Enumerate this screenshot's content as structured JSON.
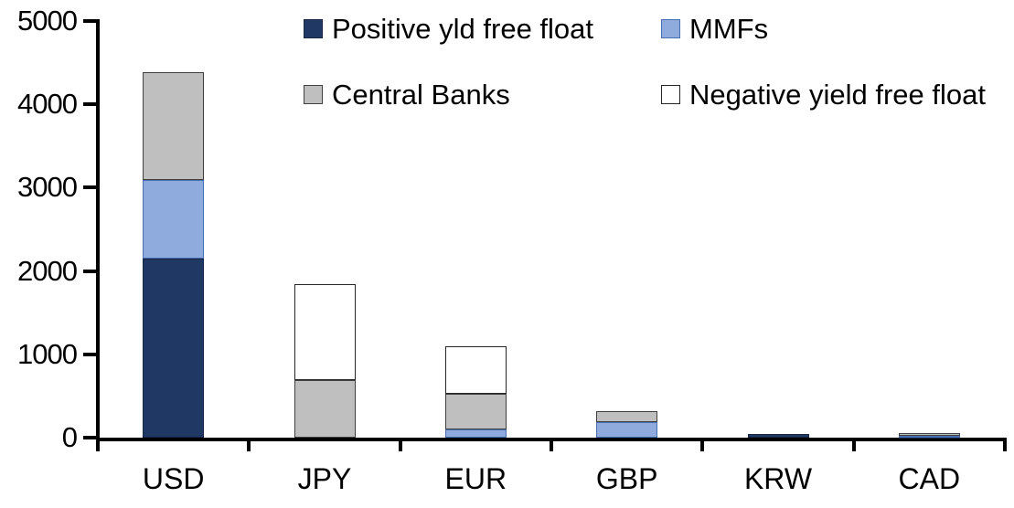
{
  "chart_data": {
    "type": "bar",
    "stacked": true,
    "title": "",
    "xlabel": "",
    "ylabel": "",
    "categories": [
      "USD",
      "JPY",
      "EUR",
      "GBP",
      "KRW",
      "CAD"
    ],
    "series": [
      {
        "name": "Positive yld free float",
        "color": "#1F3864",
        "border_color": "#152743",
        "values": [
          2150,
          0,
          0,
          0,
          40,
          10
        ]
      },
      {
        "name": "MMFs",
        "color": "#8FAADC",
        "border_color": "#4A6FB0",
        "values": [
          940,
          0,
          100,
          190,
          0,
          15
        ]
      },
      {
        "name": "Central Banks",
        "color": "#BFBFBF",
        "border_color": "#404040",
        "values": [
          1300,
          690,
          425,
          125,
          0,
          30
        ]
      },
      {
        "name": "Negative yield free float",
        "color": "#FFFFFF",
        "border_color": "#262626",
        "values": [
          0,
          1150,
          575,
          0,
          0,
          0
        ]
      }
    ],
    "totals_by_category": [
      4390,
      1840,
      1100,
      315,
      40,
      55
    ],
    "ylim": [
      0,
      5000
    ],
    "ytick_labels": [
      "0",
      "1000",
      "2000",
      "3000",
      "4000",
      "5000"
    ],
    "ytick_values": [
      0,
      1000,
      2000,
      3000,
      4000,
      5000
    ],
    "grid": false,
    "legend_position": "top",
    "legend_layout": "2x2",
    "axis_color": "#000000",
    "background_color": "#FFFFFF"
  }
}
